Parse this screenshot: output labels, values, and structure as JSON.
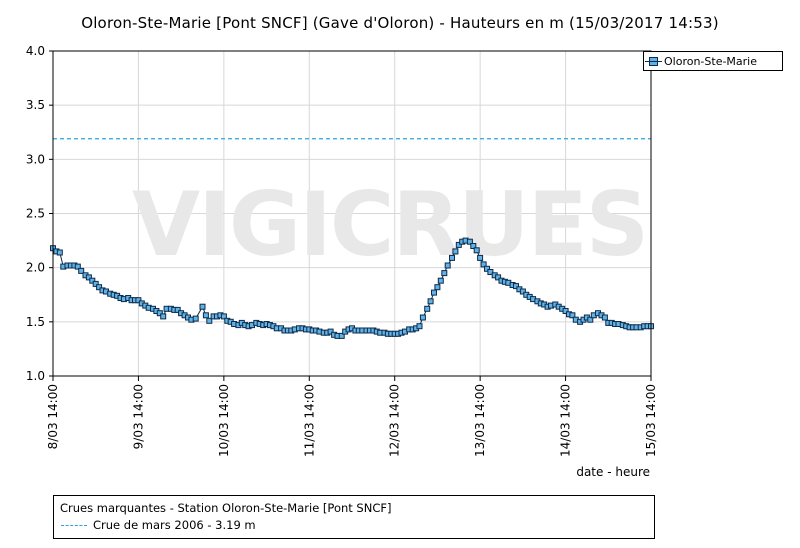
{
  "title": "Oloron-Ste-Marie [Pont SNCF] (Gave d'Oloron) - Hauteurs en m (15/03/2017 14:53)",
  "watermark": "VIGICRUES",
  "chart_data": {
    "type": "line",
    "title": "Oloron-Ste-Marie [Pont SNCF] (Gave d'Oloron) - Hauteurs en m (15/03/2017 14:53)",
    "xlabel": "date - heure",
    "ylabel": "",
    "ylim": [
      1.0,
      4.0
    ],
    "y_ticks": [
      "1.0",
      "1.5",
      "2.0",
      "2.5",
      "3.0",
      "3.5",
      "4.0"
    ],
    "x_ticks": [
      "8/03 14:00",
      "9/03 14:00",
      "10/03 14:00",
      "11/03 14:00",
      "12/03 14:00",
      "13/03 14:00",
      "14/03 14:00",
      "15/03 14:00"
    ],
    "x_unit": "days since 8/03 14:00",
    "grid": true,
    "legend_position": "top-right",
    "series_color": "#5fb3e6",
    "series_edge_color": "#0f2a4a",
    "series": [
      {
        "name": "Oloron-Ste-Marie",
        "points": [
          [
            0.0,
            2.18
          ],
          [
            0.04,
            2.15
          ],
          [
            0.08,
            2.14
          ],
          [
            0.12,
            2.01
          ],
          [
            0.17,
            2.02
          ],
          [
            0.21,
            2.02
          ],
          [
            0.25,
            2.02
          ],
          [
            0.29,
            2.01
          ],
          [
            0.33,
            1.97
          ],
          [
            0.38,
            1.93
          ],
          [
            0.42,
            1.91
          ],
          [
            0.46,
            1.88
          ],
          [
            0.5,
            1.85
          ],
          [
            0.54,
            1.82
          ],
          [
            0.58,
            1.79
          ],
          [
            0.62,
            1.78
          ],
          [
            0.67,
            1.76
          ],
          [
            0.71,
            1.75
          ],
          [
            0.75,
            1.74
          ],
          [
            0.79,
            1.72
          ],
          [
            0.83,
            1.71
          ],
          [
            0.88,
            1.72
          ],
          [
            0.92,
            1.7
          ],
          [
            0.96,
            1.7
          ],
          [
            1.0,
            1.7
          ],
          [
            1.04,
            1.67
          ],
          [
            1.08,
            1.65
          ],
          [
            1.12,
            1.63
          ],
          [
            1.17,
            1.62
          ],
          [
            1.21,
            1.6
          ],
          [
            1.25,
            1.58
          ],
          [
            1.29,
            1.55
          ],
          [
            1.33,
            1.62
          ],
          [
            1.38,
            1.62
          ],
          [
            1.42,
            1.61
          ],
          [
            1.46,
            1.61
          ],
          [
            1.5,
            1.58
          ],
          [
            1.54,
            1.56
          ],
          [
            1.58,
            1.54
          ],
          [
            1.62,
            1.52
          ],
          [
            1.67,
            1.53
          ],
          [
            1.75,
            1.64
          ],
          [
            1.79,
            1.56
          ],
          [
            1.83,
            1.51
          ],
          [
            1.88,
            1.55
          ],
          [
            1.92,
            1.55
          ],
          [
            1.96,
            1.56
          ],
          [
            2.0,
            1.55
          ],
          [
            2.04,
            1.51
          ],
          [
            2.08,
            1.5
          ],
          [
            2.12,
            1.48
          ],
          [
            2.17,
            1.47
          ],
          [
            2.21,
            1.49
          ],
          [
            2.25,
            1.47
          ],
          [
            2.29,
            1.46
          ],
          [
            2.33,
            1.47
          ],
          [
            2.38,
            1.49
          ],
          [
            2.42,
            1.48
          ],
          [
            2.46,
            1.47
          ],
          [
            2.5,
            1.48
          ],
          [
            2.54,
            1.47
          ],
          [
            2.58,
            1.46
          ],
          [
            2.62,
            1.44
          ],
          [
            2.67,
            1.44
          ],
          [
            2.71,
            1.42
          ],
          [
            2.75,
            1.42
          ],
          [
            2.79,
            1.42
          ],
          [
            2.83,
            1.43
          ],
          [
            2.88,
            1.44
          ],
          [
            2.92,
            1.44
          ],
          [
            2.96,
            1.43
          ],
          [
            3.0,
            1.43
          ],
          [
            3.04,
            1.42
          ],
          [
            3.08,
            1.42
          ],
          [
            3.12,
            1.41
          ],
          [
            3.17,
            1.4
          ],
          [
            3.21,
            1.4
          ],
          [
            3.25,
            1.41
          ],
          [
            3.29,
            1.38
          ],
          [
            3.33,
            1.37
          ],
          [
            3.38,
            1.37
          ],
          [
            3.42,
            1.41
          ],
          [
            3.46,
            1.43
          ],
          [
            3.5,
            1.44
          ],
          [
            3.54,
            1.42
          ],
          [
            3.58,
            1.42
          ],
          [
            3.62,
            1.42
          ],
          [
            3.67,
            1.42
          ],
          [
            3.71,
            1.42
          ],
          [
            3.75,
            1.42
          ],
          [
            3.79,
            1.41
          ],
          [
            3.83,
            1.4
          ],
          [
            3.88,
            1.4
          ],
          [
            3.92,
            1.39
          ],
          [
            3.96,
            1.39
          ],
          [
            4.0,
            1.39
          ],
          [
            4.04,
            1.39
          ],
          [
            4.08,
            1.4
          ],
          [
            4.12,
            1.41
          ],
          [
            4.17,
            1.43
          ],
          [
            4.21,
            1.43
          ],
          [
            4.25,
            1.44
          ],
          [
            4.29,
            1.46
          ],
          [
            4.33,
            1.54
          ],
          [
            4.38,
            1.62
          ],
          [
            4.42,
            1.69
          ],
          [
            4.46,
            1.77
          ],
          [
            4.5,
            1.82
          ],
          [
            4.54,
            1.88
          ],
          [
            4.58,
            1.95
          ],
          [
            4.62,
            2.02
          ],
          [
            4.67,
            2.09
          ],
          [
            4.71,
            2.15
          ],
          [
            4.75,
            2.21
          ],
          [
            4.79,
            2.24
          ],
          [
            4.83,
            2.25
          ],
          [
            4.88,
            2.24
          ],
          [
            4.92,
            2.2
          ],
          [
            4.96,
            2.16
          ],
          [
            5.0,
            2.09
          ],
          [
            5.04,
            2.03
          ],
          [
            5.08,
            1.99
          ],
          [
            5.12,
            1.96
          ],
          [
            5.17,
            1.93
          ],
          [
            5.21,
            1.91
          ],
          [
            5.25,
            1.88
          ],
          [
            5.29,
            1.87
          ],
          [
            5.33,
            1.86
          ],
          [
            5.38,
            1.84
          ],
          [
            5.42,
            1.83
          ],
          [
            5.46,
            1.8
          ],
          [
            5.5,
            1.78
          ],
          [
            5.54,
            1.75
          ],
          [
            5.58,
            1.73
          ],
          [
            5.62,
            1.71
          ],
          [
            5.67,
            1.69
          ],
          [
            5.71,
            1.67
          ],
          [
            5.75,
            1.66
          ],
          [
            5.79,
            1.64
          ],
          [
            5.83,
            1.65
          ],
          [
            5.88,
            1.66
          ],
          [
            5.92,
            1.64
          ],
          [
            5.96,
            1.62
          ],
          [
            6.0,
            1.6
          ],
          [
            6.04,
            1.57
          ],
          [
            6.08,
            1.56
          ],
          [
            6.12,
            1.52
          ],
          [
            6.17,
            1.5
          ],
          [
            6.21,
            1.52
          ],
          [
            6.25,
            1.54
          ],
          [
            6.29,
            1.52
          ],
          [
            6.33,
            1.56
          ],
          [
            6.38,
            1.58
          ],
          [
            6.42,
            1.56
          ],
          [
            6.46,
            1.54
          ],
          [
            6.5,
            1.49
          ],
          [
            6.54,
            1.49
          ],
          [
            6.58,
            1.48
          ],
          [
            6.62,
            1.48
          ],
          [
            6.67,
            1.47
          ],
          [
            6.71,
            1.46
          ],
          [
            6.75,
            1.45
          ],
          [
            6.79,
            1.45
          ],
          [
            6.83,
            1.45
          ],
          [
            6.88,
            1.45
          ],
          [
            6.92,
            1.46
          ],
          [
            6.96,
            1.46
          ],
          [
            7.0,
            1.46
          ]
        ]
      }
    ],
    "reference_lines": [
      {
        "label": "Crue de mars 2006 - 3.19 m",
        "value": 3.19,
        "color": "#2aa4e0",
        "style": "dashed"
      }
    ],
    "reference_box_title": "Crues marquantes - Station Oloron-Ste-Marie [Pont SNCF]"
  }
}
